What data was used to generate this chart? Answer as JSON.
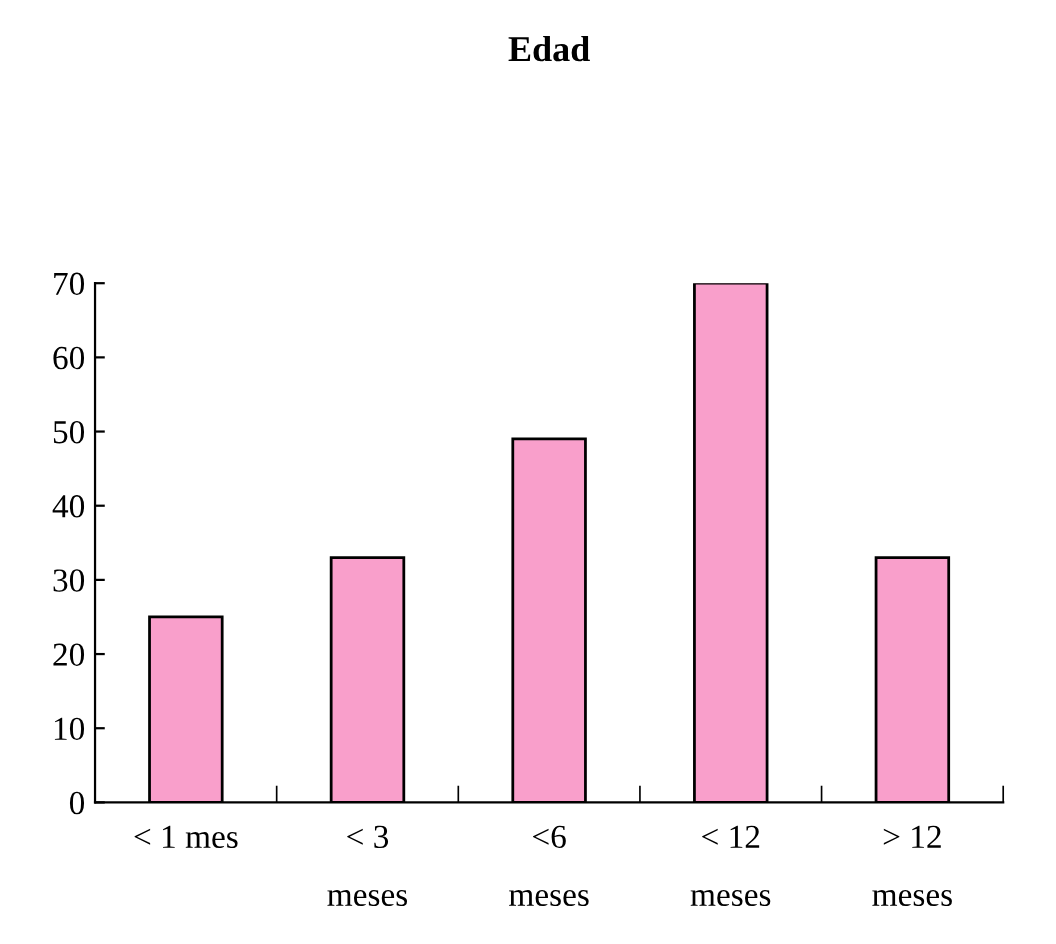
{
  "chart_data": {
    "type": "bar",
    "title": "Edad",
    "categories": [
      "< 1 mes",
      "< 3\nmeses",
      "<6\nmeses",
      "< 12\nmeses",
      "> 12\nmeses"
    ],
    "values": [
      25,
      33,
      49,
      70,
      33
    ],
    "color": "#f99fcb",
    "ylim": [
      0,
      70
    ],
    "yticks": [
      0,
      10,
      20,
      30,
      40,
      50,
      60,
      70
    ],
    "grid": false,
    "legend": false
  }
}
